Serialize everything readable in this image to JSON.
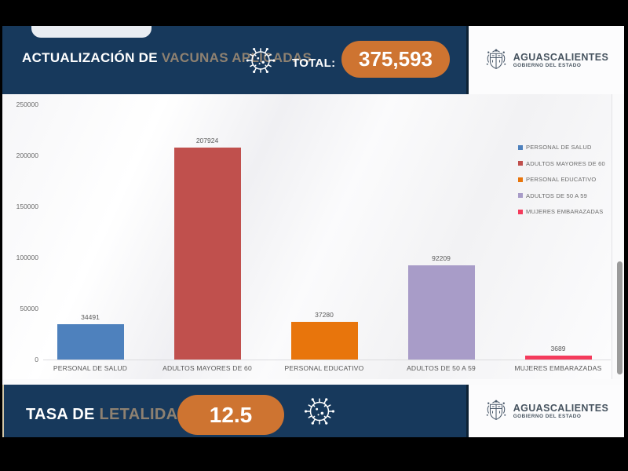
{
  "header": {
    "title_bold": "ACTUALIZACIÓN DE",
    "title_accent": " VACUNAS APLICADAS",
    "total_label": "TOTAL:",
    "total_value": "375,593"
  },
  "logo": {
    "name": "AGUASCALIENTES",
    "subtitle": "GOBIERNO DEL ESTADO"
  },
  "footer": {
    "title_bold": "TASA DE",
    "title_accent": " LETALIDAD",
    "value": "12.5"
  },
  "chart_data": {
    "type": "bar",
    "categories": [
      "PERSONAL DE SALUD",
      "ADULTOS MAYORES DE 60",
      "PERSONAL EDUCATIVO",
      "ADULTOS DE 50 A 59",
      "MUJERES EMBARAZADAS"
    ],
    "values": [
      34491,
      207924,
      37280,
      92209,
      3689
    ],
    "colors": [
      "#4e81bd",
      "#c0504d",
      "#e8750c",
      "#a89cc8",
      "#f43b5c"
    ],
    "y_ticks": [
      250000,
      200000,
      150000,
      100000,
      50000,
      0
    ],
    "ylim": [
      0,
      250000
    ],
    "title": "",
    "xlabel": "",
    "ylabel": "",
    "grid": false,
    "legend_position": "right"
  },
  "colors": {
    "navy": "#17395c",
    "accent_orange": "#ce7431",
    "tan_text": "#8e8171"
  }
}
